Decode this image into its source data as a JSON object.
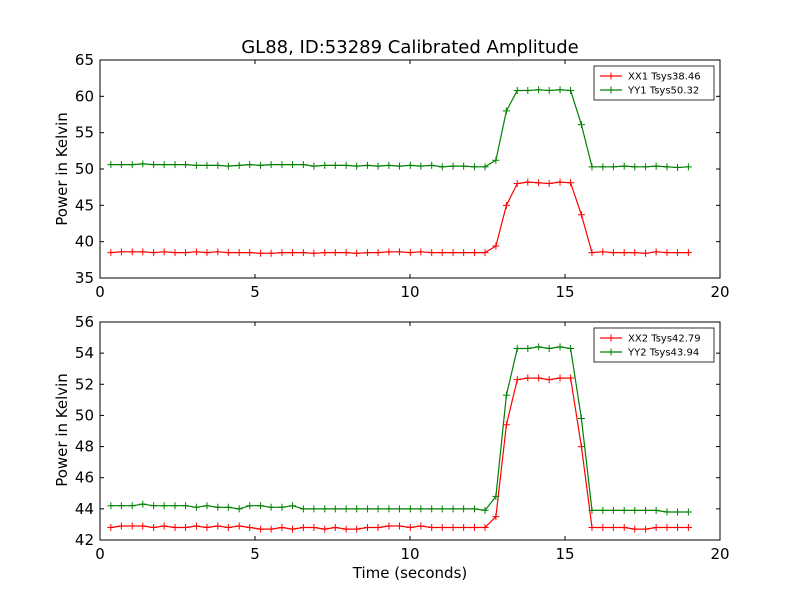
{
  "figure": {
    "title": "GL88, ID:53289 Calibrated Amplitude",
    "xlabel": "Time (seconds)",
    "ylabel": "Power in Kelvin"
  },
  "chart_data": [
    {
      "type": "line",
      "ylabel": "Power in Kelvin",
      "xlim": [
        0,
        20
      ],
      "ylim": [
        35,
        65
      ],
      "xticks": [
        0,
        5,
        10,
        15,
        20
      ],
      "yticks": [
        35,
        40,
        45,
        50,
        55,
        60,
        65
      ],
      "legend": "top-right",
      "x": [
        0.35,
        0.69,
        1.04,
        1.38,
        1.73,
        2.07,
        2.42,
        2.76,
        3.11,
        3.45,
        3.8,
        4.14,
        4.49,
        4.83,
        5.18,
        5.52,
        5.87,
        6.21,
        6.56,
        6.9,
        7.25,
        7.59,
        7.94,
        8.28,
        8.63,
        8.97,
        9.32,
        9.66,
        10.01,
        10.35,
        10.7,
        11.04,
        11.39,
        11.73,
        12.08,
        12.42,
        12.77,
        13.11,
        13.46,
        13.8,
        14.15,
        14.49,
        14.84,
        15.18,
        15.53,
        15.87,
        16.22,
        16.56,
        16.91,
        17.25,
        17.6,
        17.94,
        18.29,
        18.63,
        18.98
      ],
      "series": [
        {
          "name": "XX1 Tsys38.46",
          "color": "#ff0000",
          "values": [
            38.5,
            38.6,
            38.6,
            38.6,
            38.5,
            38.6,
            38.5,
            38.5,
            38.6,
            38.5,
            38.6,
            38.5,
            38.5,
            38.5,
            38.4,
            38.4,
            38.5,
            38.5,
            38.5,
            38.4,
            38.5,
            38.5,
            38.5,
            38.4,
            38.5,
            38.5,
            38.6,
            38.6,
            38.5,
            38.6,
            38.5,
            38.5,
            38.5,
            38.5,
            38.5,
            38.5,
            39.4,
            45.0,
            48.0,
            48.2,
            48.1,
            48.0,
            48.2,
            48.1,
            43.7,
            38.5,
            38.6,
            38.5,
            38.5,
            38.5,
            38.4,
            38.6,
            38.5,
            38.5,
            38.5
          ]
        },
        {
          "name": "YY1 Tsys50.32",
          "color": "#008000",
          "values": [
            50.6,
            50.6,
            50.6,
            50.7,
            50.6,
            50.6,
            50.6,
            50.6,
            50.5,
            50.5,
            50.5,
            50.4,
            50.5,
            50.6,
            50.5,
            50.6,
            50.6,
            50.6,
            50.6,
            50.4,
            50.5,
            50.5,
            50.5,
            50.4,
            50.5,
            50.4,
            50.5,
            50.4,
            50.5,
            50.4,
            50.5,
            50.3,
            50.4,
            50.4,
            50.3,
            50.3,
            51.2,
            58.0,
            60.8,
            60.8,
            60.9,
            60.8,
            60.9,
            60.8,
            56.1,
            50.3,
            50.3,
            50.3,
            50.4,
            50.3,
            50.3,
            50.4,
            50.3,
            50.2,
            50.3
          ]
        }
      ]
    },
    {
      "type": "line",
      "ylabel": "Power in Kelvin",
      "xlabel": "Time (seconds)",
      "xlim": [
        0,
        20
      ],
      "ylim": [
        42,
        56
      ],
      "xticks": [
        0,
        5,
        10,
        15,
        20
      ],
      "yticks": [
        42,
        44,
        46,
        48,
        50,
        52,
        54,
        56
      ],
      "legend": "top-right",
      "x": [
        0.35,
        0.69,
        1.04,
        1.38,
        1.73,
        2.07,
        2.42,
        2.76,
        3.11,
        3.45,
        3.8,
        4.14,
        4.49,
        4.83,
        5.18,
        5.52,
        5.87,
        6.21,
        6.56,
        6.9,
        7.25,
        7.59,
        7.94,
        8.28,
        8.63,
        8.97,
        9.32,
        9.66,
        10.01,
        10.35,
        10.7,
        11.04,
        11.39,
        11.73,
        12.08,
        12.42,
        12.77,
        13.11,
        13.46,
        13.8,
        14.15,
        14.49,
        14.84,
        15.18,
        15.53,
        15.87,
        16.22,
        16.56,
        16.91,
        17.25,
        17.6,
        17.94,
        18.29,
        18.63,
        18.98
      ],
      "series": [
        {
          "name": "XX2 Tsys42.79",
          "color": "#ff0000",
          "values": [
            42.8,
            42.9,
            42.9,
            42.9,
            42.8,
            42.9,
            42.8,
            42.8,
            42.9,
            42.8,
            42.9,
            42.8,
            42.9,
            42.8,
            42.7,
            42.7,
            42.8,
            42.7,
            42.8,
            42.8,
            42.7,
            42.8,
            42.7,
            42.7,
            42.8,
            42.8,
            42.9,
            42.9,
            42.8,
            42.9,
            42.8,
            42.8,
            42.8,
            42.8,
            42.8,
            42.8,
            43.5,
            49.4,
            52.3,
            52.4,
            52.4,
            52.3,
            52.4,
            52.4,
            48.0,
            42.8,
            42.8,
            42.8,
            42.8,
            42.7,
            42.7,
            42.8,
            42.8,
            42.8,
            42.8
          ]
        },
        {
          "name": "YY2 Tsys43.94",
          "color": "#008000",
          "values": [
            44.2,
            44.2,
            44.2,
            44.3,
            44.2,
            44.2,
            44.2,
            44.2,
            44.1,
            44.2,
            44.1,
            44.1,
            44.0,
            44.2,
            44.2,
            44.1,
            44.1,
            44.2,
            44.0,
            44.0,
            44.0,
            44.0,
            44.0,
            44.0,
            44.0,
            44.0,
            44.0,
            44.0,
            44.0,
            44.0,
            44.0,
            44.0,
            44.0,
            44.0,
            44.0,
            43.9,
            44.8,
            51.3,
            54.3,
            54.3,
            54.4,
            54.3,
            54.4,
            54.3,
            49.8,
            43.9,
            43.9,
            43.9,
            43.9,
            43.9,
            43.9,
            43.9,
            43.8,
            43.8,
            43.8
          ]
        }
      ]
    }
  ]
}
